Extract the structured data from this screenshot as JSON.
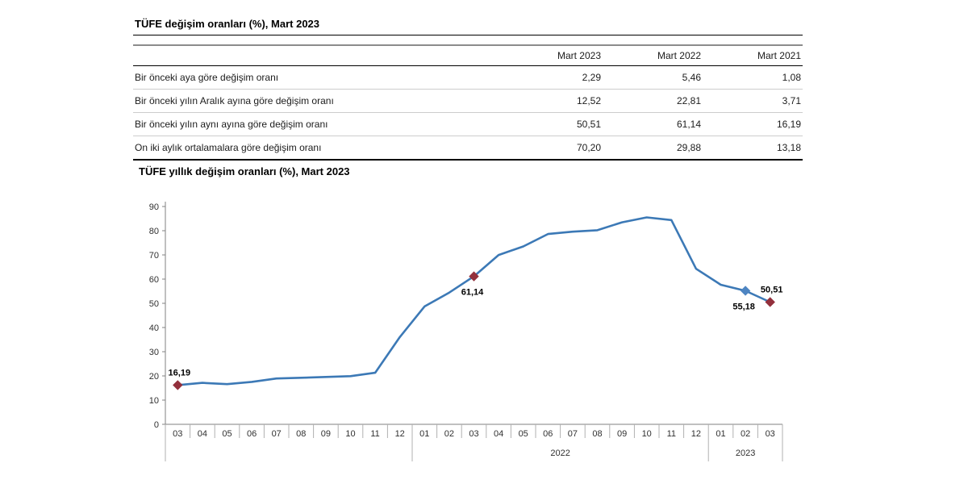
{
  "table": {
    "title": "TÜFE değişim oranları (%), Mart 2023",
    "columns": [
      "Mart 2023",
      "Mart 2022",
      "Mart 2021"
    ],
    "rows": [
      {
        "label": "Bir önceki aya göre değişim oranı",
        "values": [
          "2,29",
          "5,46",
          "1,08"
        ]
      },
      {
        "label": "Bir önceki yılın Aralık ayına göre değişim oranı",
        "values": [
          "12,52",
          "22,81",
          "3,71"
        ]
      },
      {
        "label": "Bir önceki yılın aynı ayına göre değişim oranı",
        "values": [
          "50,51",
          "61,14",
          "16,19"
        ]
      },
      {
        "label": "On iki aylık ortalamalara göre değişim oranı",
        "values": [
          "70,20",
          "29,88",
          "13,18"
        ]
      }
    ]
  },
  "chart_data": {
    "type": "line",
    "title": "TÜFE yıllık değişim oranları (%), Mart 2023",
    "ylabel": "",
    "xlabel": "",
    "ylim": [
      0,
      90
    ],
    "ytick_step": 10,
    "grid": false,
    "line_color": "#3c79b6",
    "x_axis": {
      "groups": [
        {
          "year_label": "",
          "months": [
            "03",
            "04",
            "05",
            "06",
            "07",
            "08",
            "09",
            "10",
            "11",
            "12"
          ]
        },
        {
          "year_label": "2022",
          "months": [
            "01",
            "02",
            "03",
            "04",
            "05",
            "06",
            "07",
            "08",
            "09",
            "10",
            "11",
            "12"
          ]
        },
        {
          "year_label": "2023",
          "months": [
            "01",
            "02",
            "03"
          ]
        }
      ]
    },
    "values": [
      16.19,
      17.14,
      16.59,
      17.53,
      18.95,
      19.25,
      19.58,
      19.89,
      21.31,
      36.08,
      48.69,
      54.44,
      61.14,
      69.97,
      73.5,
      78.62,
      79.6,
      80.21,
      83.45,
      85.51,
      84.39,
      64.27,
      57.68,
      55.18,
      50.51
    ],
    "annotations": [
      {
        "index": 0,
        "label": "16,19",
        "marker_color": "#93303c",
        "position": "above"
      },
      {
        "index": 12,
        "label": "61,14",
        "marker_color": "#93303c",
        "position": "below"
      },
      {
        "index": 23,
        "label": "55,18",
        "marker_color": "#4e85c2",
        "position": "below"
      },
      {
        "index": 24,
        "label": "50,51",
        "marker_color": "#93303c",
        "position": "above"
      }
    ]
  }
}
